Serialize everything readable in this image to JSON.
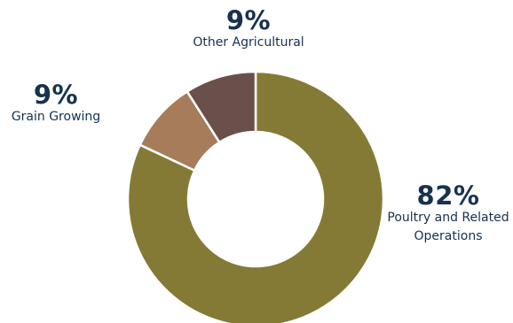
{
  "chart_data": {
    "type": "pie",
    "donut": true,
    "slices": [
      {
        "label": "Poultry and Related Operations",
        "label_lines": [
          "Poultry and Related",
          "Operations"
        ],
        "value": 82,
        "display": "82%",
        "color": "#857a35"
      },
      {
        "label": "Grain Growing",
        "label_lines": [
          "Grain Growing"
        ],
        "value": 9,
        "display": "9%",
        "color": "#a67c5b"
      },
      {
        "label": "Other Agricultural",
        "label_lines": [
          "Other Agricultural"
        ],
        "value": 9,
        "display": "9%",
        "color": "#6a4f4b"
      }
    ],
    "legend": "none",
    "slice_border_color": "#ffffff",
    "label_color": "#16324f"
  }
}
